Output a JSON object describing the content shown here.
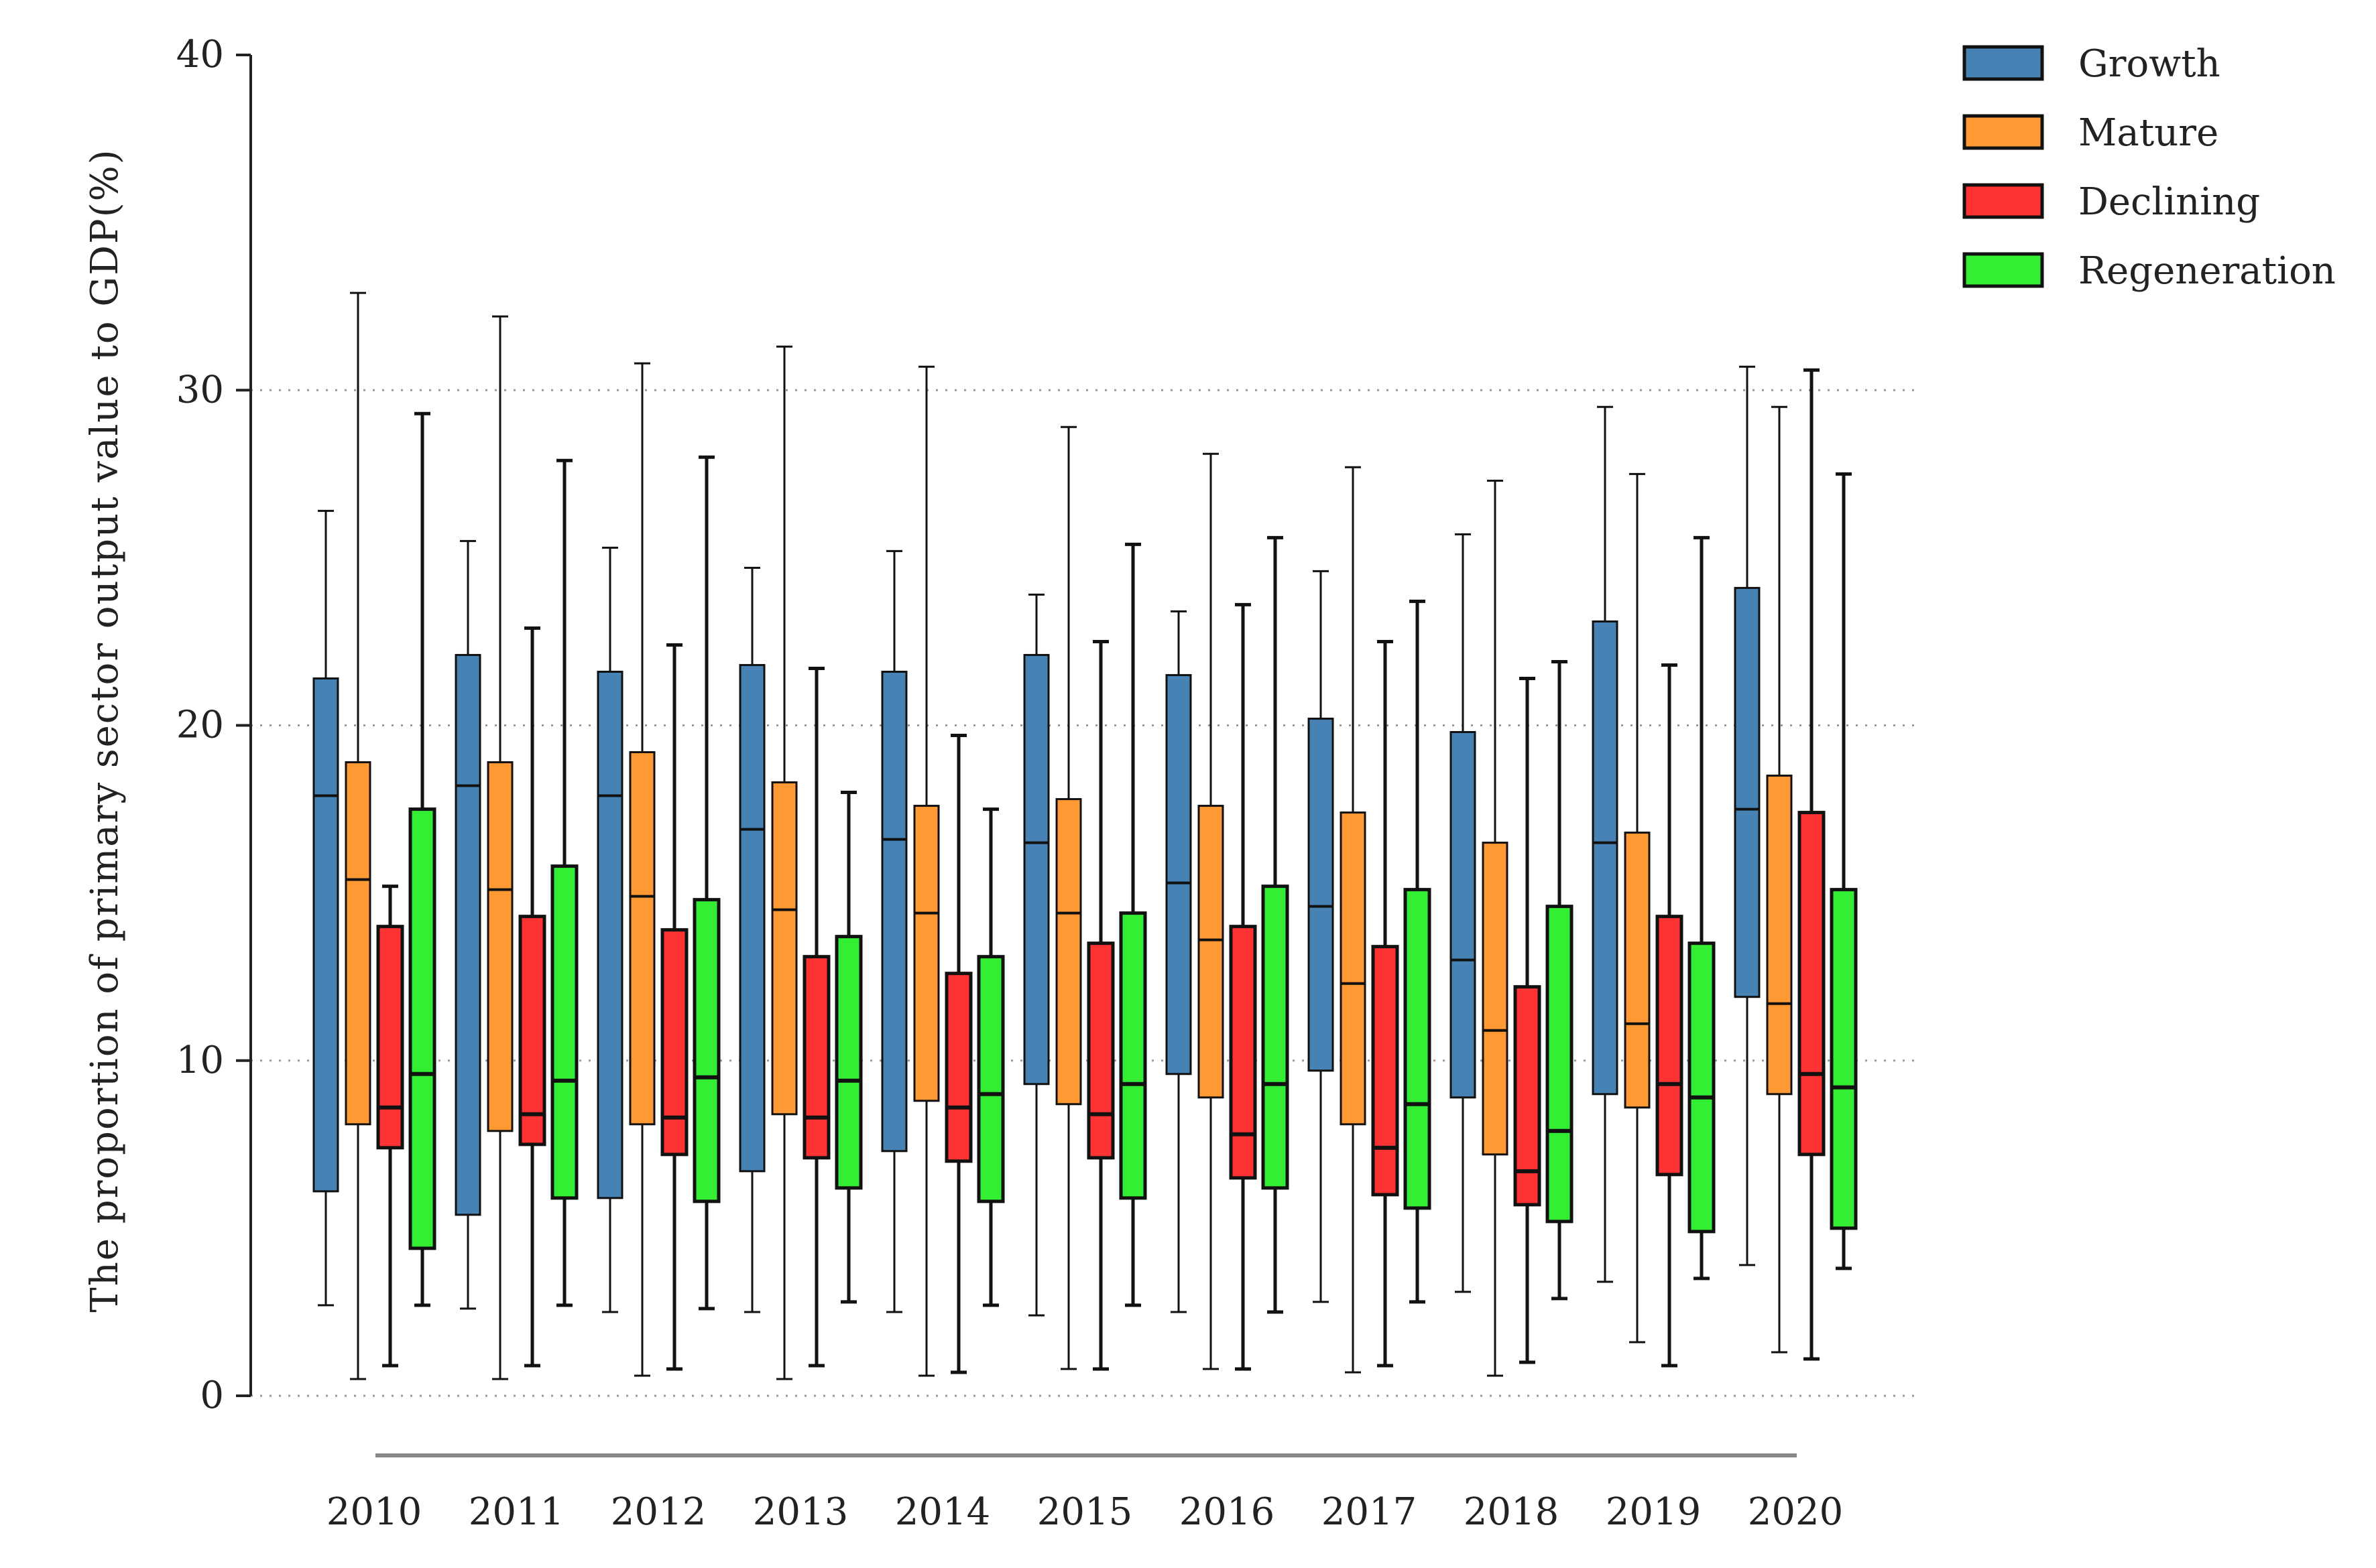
{
  "chart_data": {
    "type": "boxplot",
    "xlabel": "",
    "ylabel": "The  proportion of primary sector output value to GDP(%)",
    "ylim": [
      0,
      40
    ],
    "yticks": [
      0,
      10,
      20,
      30,
      40
    ],
    "grid": "horizontal dotted at 0, 10, 20, 30",
    "legend_position": "top-right",
    "categories": [
      "2010",
      "2011",
      "2012",
      "2013",
      "2014",
      "2015",
      "2016",
      "2017",
      "2018",
      "2019",
      "2020"
    ],
    "series": [
      {
        "name": "Growth",
        "color": "#4682b4",
        "boxes": [
          {
            "min": 2.7,
            "q1": 6.1,
            "median": 17.9,
            "q3": 21.4,
            "max": 26.4
          },
          {
            "min": 2.6,
            "q1": 5.4,
            "median": 18.2,
            "q3": 22.1,
            "max": 25.5
          },
          {
            "min": 2.5,
            "q1": 5.9,
            "median": 17.9,
            "q3": 21.6,
            "max": 25.3
          },
          {
            "min": 2.5,
            "q1": 6.7,
            "median": 16.9,
            "q3": 21.8,
            "max": 24.7
          },
          {
            "min": 2.5,
            "q1": 7.3,
            "median": 16.6,
            "q3": 21.6,
            "max": 25.2
          },
          {
            "min": 2.4,
            "q1": 9.3,
            "median": 16.5,
            "q3": 22.1,
            "max": 23.9
          },
          {
            "min": 2.5,
            "q1": 9.6,
            "median": 15.3,
            "q3": 21.5,
            "max": 23.4
          },
          {
            "min": 2.8,
            "q1": 9.7,
            "median": 14.6,
            "q3": 20.2,
            "max": 24.6
          },
          {
            "min": 3.1,
            "q1": 8.9,
            "median": 13.0,
            "q3": 19.8,
            "max": 25.7
          },
          {
            "min": 3.4,
            "q1": 9.0,
            "median": 16.5,
            "q3": 23.1,
            "max": 29.5
          },
          {
            "min": 3.9,
            "q1": 11.9,
            "median": 17.5,
            "q3": 24.1,
            "max": 30.7
          }
        ]
      },
      {
        "name": "Mature",
        "color": "#ff9933",
        "boxes": [
          {
            "min": 0.5,
            "q1": 8.1,
            "median": 15.4,
            "q3": 18.9,
            "max": 32.9
          },
          {
            "min": 0.5,
            "q1": 7.9,
            "median": 15.1,
            "q3": 18.9,
            "max": 32.2
          },
          {
            "min": 0.6,
            "q1": 8.1,
            "median": 14.9,
            "q3": 19.2,
            "max": 30.8
          },
          {
            "min": 0.5,
            "q1": 8.4,
            "median": 14.5,
            "q3": 18.3,
            "max": 31.3
          },
          {
            "min": 0.6,
            "q1": 8.8,
            "median": 14.4,
            "q3": 17.6,
            "max": 30.7
          },
          {
            "min": 0.8,
            "q1": 8.7,
            "median": 14.4,
            "q3": 17.8,
            "max": 28.9
          },
          {
            "min": 0.8,
            "q1": 8.9,
            "median": 13.6,
            "q3": 17.6,
            "max": 28.1
          },
          {
            "min": 0.7,
            "q1": 8.1,
            "median": 12.3,
            "q3": 17.4,
            "max": 27.7
          },
          {
            "min": 0.6,
            "q1": 7.2,
            "median": 10.9,
            "q3": 16.5,
            "max": 27.3
          },
          {
            "min": 1.6,
            "q1": 8.6,
            "median": 11.1,
            "q3": 16.8,
            "max": 27.5
          },
          {
            "min": 1.3,
            "q1": 9.0,
            "median": 11.7,
            "q3": 18.5,
            "max": 29.5
          }
        ]
      },
      {
        "name": "Declining",
        "color": "#ff3333",
        "boxes": [
          {
            "min": 0.9,
            "q1": 7.4,
            "median": 8.6,
            "q3": 14.0,
            "max": 15.2
          },
          {
            "min": 0.9,
            "q1": 7.5,
            "median": 8.4,
            "q3": 14.3,
            "max": 22.9
          },
          {
            "min": 0.8,
            "q1": 7.2,
            "median": 8.3,
            "q3": 13.9,
            "max": 22.4
          },
          {
            "min": 0.9,
            "q1": 7.1,
            "median": 8.3,
            "q3": 13.1,
            "max": 21.7
          },
          {
            "min": 0.7,
            "q1": 7.0,
            "median": 8.6,
            "q3": 12.6,
            "max": 19.7
          },
          {
            "min": 0.8,
            "q1": 7.1,
            "median": 8.4,
            "q3": 13.5,
            "max": 22.5
          },
          {
            "min": 0.8,
            "q1": 6.5,
            "median": 7.8,
            "q3": 14.0,
            "max": 23.6
          },
          {
            "min": 0.9,
            "q1": 6.0,
            "median": 7.4,
            "q3": 13.4,
            "max": 22.5
          },
          {
            "min": 1.0,
            "q1": 5.7,
            "median": 6.7,
            "q3": 12.2,
            "max": 21.4
          },
          {
            "min": 0.9,
            "q1": 6.6,
            "median": 9.3,
            "q3": 14.3,
            "max": 21.8
          },
          {
            "min": 1.1,
            "q1": 7.2,
            "median": 9.6,
            "q3": 17.4,
            "max": 30.6
          }
        ]
      },
      {
        "name": "Regeneration",
        "color": "#33ee33",
        "boxes": [
          {
            "min": 2.7,
            "q1": 4.4,
            "median": 9.6,
            "q3": 17.5,
            "max": 29.3
          },
          {
            "min": 2.7,
            "q1": 5.9,
            "median": 9.4,
            "q3": 15.8,
            "max": 27.9
          },
          {
            "min": 2.6,
            "q1": 5.8,
            "median": 9.5,
            "q3": 14.8,
            "max": 28.0
          },
          {
            "min": 2.8,
            "q1": 6.2,
            "median": 9.4,
            "q3": 13.7,
            "max": 18.0
          },
          {
            "min": 2.7,
            "q1": 5.8,
            "median": 9.0,
            "q3": 13.1,
            "max": 17.5
          },
          {
            "min": 2.7,
            "q1": 5.9,
            "median": 9.3,
            "q3": 14.4,
            "max": 25.4
          },
          {
            "min": 2.5,
            "q1": 6.2,
            "median": 9.3,
            "q3": 15.2,
            "max": 25.6
          },
          {
            "min": 2.8,
            "q1": 5.6,
            "median": 8.7,
            "q3": 15.1,
            "max": 23.7
          },
          {
            "min": 2.9,
            "q1": 5.2,
            "median": 7.9,
            "q3": 14.6,
            "max": 21.9
          },
          {
            "min": 3.5,
            "q1": 4.9,
            "median": 8.9,
            "q3": 13.5,
            "max": 25.6
          },
          {
            "min": 3.8,
            "q1": 5.0,
            "median": 9.2,
            "q3": 15.1,
            "max": 27.5
          }
        ]
      }
    ]
  }
}
